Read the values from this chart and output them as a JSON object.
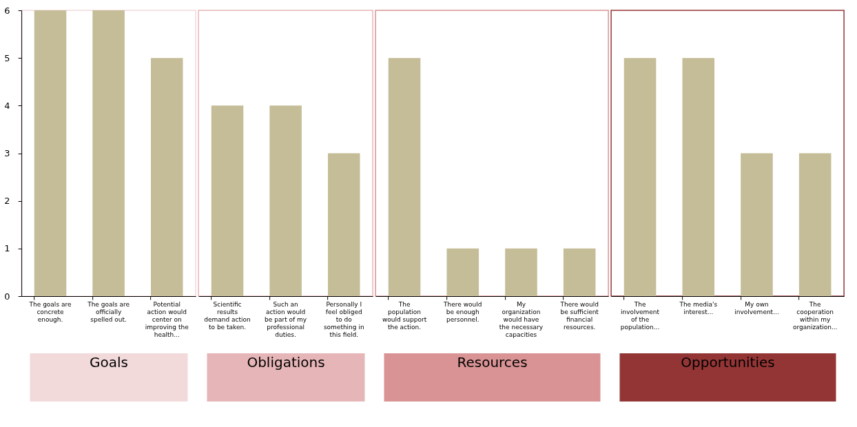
{
  "chart_data": [
    {
      "type": "bar",
      "title": "Goals",
      "categories": [
        "The goals are concrete enough.",
        "The goals are officially spelled out.",
        "Potential action would center on improving the health..."
      ],
      "values": [
        6,
        6,
        5
      ],
      "color": "#c5bd98",
      "ylim": [
        0,
        6
      ],
      "yticks": [
        0,
        1,
        2,
        3,
        4,
        5,
        6
      ],
      "grid": false
    },
    {
      "type": "bar",
      "title": "Obligations",
      "categories": [
        "Scientific results demand action to be taken.",
        "Such an action would be part of my professional duties.",
        "Personally I feel obliged to do something in this field."
      ],
      "values": [
        4,
        4,
        3
      ],
      "color": "#c5bd98",
      "ylim": [
        0,
        6
      ],
      "yticks": [
        0,
        1,
        2,
        3,
        4,
        5,
        6
      ],
      "grid": false,
      "tick_labels": "x"
    },
    {
      "type": "bar",
      "title": "Resources",
      "categories": [
        "The population would support the action.",
        "There would be enough personnel.",
        "My organization would have the necessary capacities",
        "There would be sufficient financial resources."
      ],
      "values": [
        5,
        1,
        1,
        1
      ],
      "color": "#c5bd98",
      "ylim": [
        0,
        6
      ],
      "yticks": [
        0,
        1,
        2,
        3,
        4,
        5,
        6
      ],
      "grid": false,
      "tick_labels": "x"
    },
    {
      "type": "bar",
      "title": "Opportunities",
      "categories": [
        "The involvement of the population...",
        "The media's interest...",
        "My own involvement...",
        "The cooperation within my organization..."
      ],
      "values": [
        5,
        5,
        3,
        3
      ],
      "color": "#c5bd98",
      "ylim": [
        0,
        6
      ],
      "yticks": [
        0,
        1,
        2,
        3,
        4,
        5,
        6
      ],
      "grid": false,
      "tick_labels": "x"
    }
  ]
}
